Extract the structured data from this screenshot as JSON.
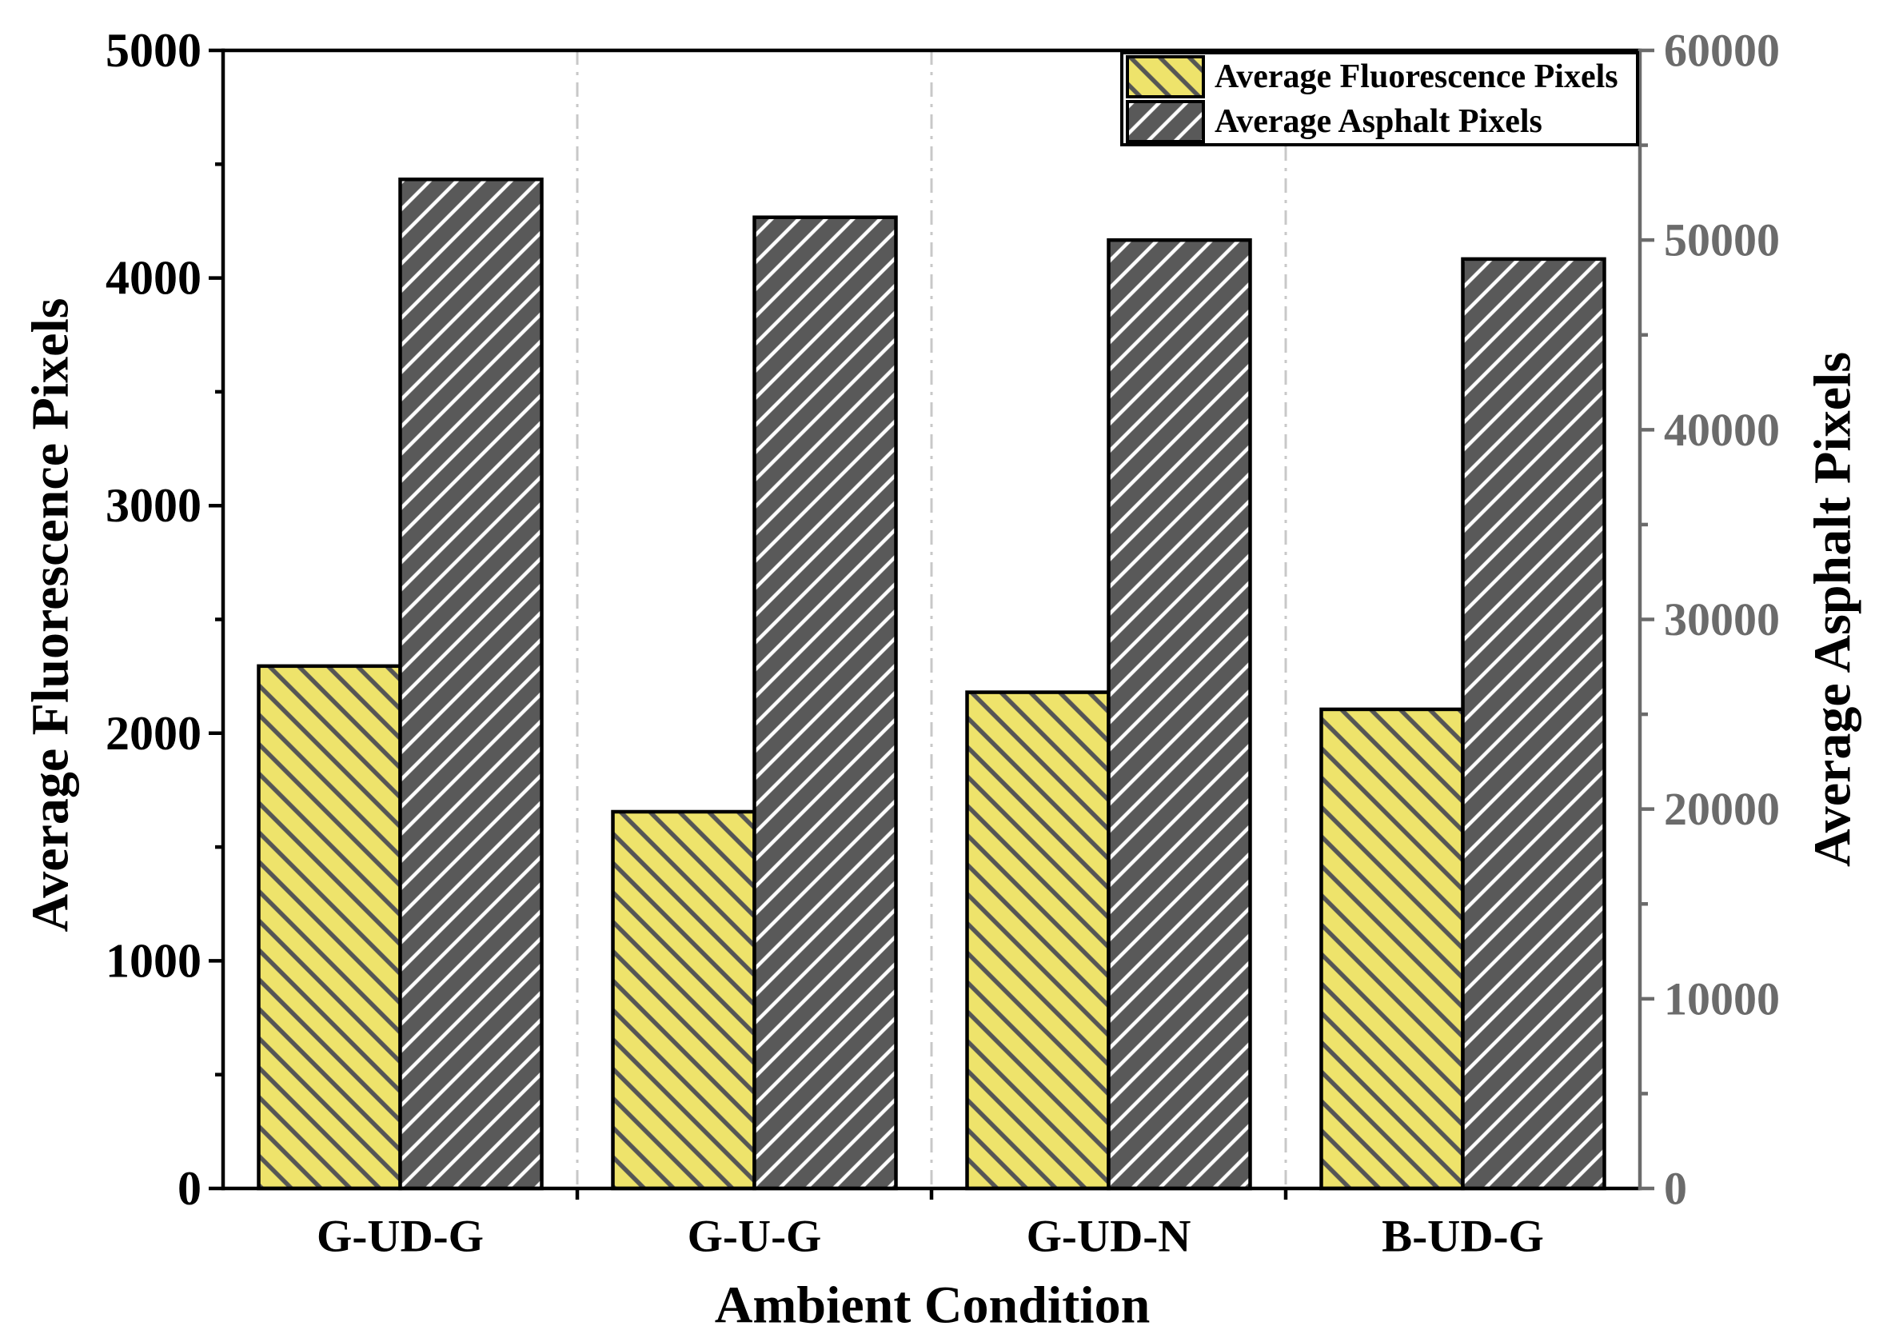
{
  "chart_data": {
    "type": "bar",
    "xlabel": "Ambient Condition",
    "ylabel": "Average Fluorescence Pixels",
    "y2label": "Average Asphalt Pixels",
    "categories": [
      "G-UD-G",
      "G-U-G",
      "G-UD-N",
      "B-UD-G"
    ],
    "series": [
      {
        "name": "Average Fluorescence Pixels",
        "y_axis": 1,
        "values": [
          2295,
          1655,
          2180,
          2105
        ],
        "color": "#EEE36B",
        "hatch_color": "#555555"
      },
      {
        "name": "Average Asphalt Pixels",
        "y_axis": 2,
        "values": [
          53200,
          51200,
          50000,
          49000
        ],
        "color": "#595959",
        "hatch_color": "#FFFFFF"
      }
    ],
    "ylim": [
      0,
      5000
    ],
    "y2lim": [
      0,
      60000
    ],
    "yticks": [
      "0",
      "1000",
      "2000",
      "3000",
      "4000",
      "5000"
    ],
    "y2ticks": [
      "0",
      "10000",
      "20000",
      "30000",
      "40000",
      "50000",
      "60000"
    ],
    "grid": false,
    "legend": "top-right",
    "axis_color": "#000000",
    "y2_axis_color": "#6B6B6B",
    "separator_color": "#C8C8C8"
  }
}
